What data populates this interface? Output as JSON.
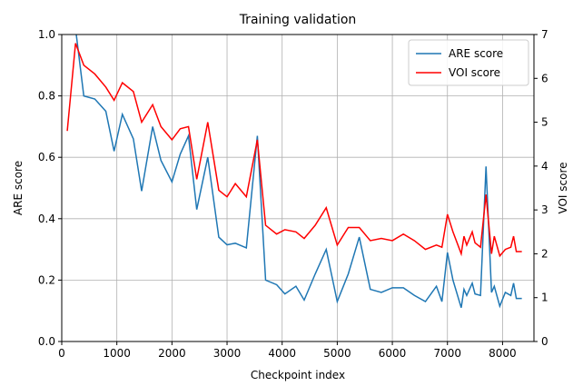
{
  "chart_data": {
    "type": "line",
    "title": "Training validation",
    "x_label": "Checkpoint index",
    "y_label": "ARE score",
    "y2_label": "VOI score",
    "x": [
      100,
      250,
      400,
      600,
      800,
      950,
      1100,
      1300,
      1450,
      1650,
      1800,
      2000,
      2150,
      2300,
      2450,
      2650,
      2850,
      3000,
      3150,
      3350,
      3550,
      3700,
      3900,
      4050,
      4250,
      4400,
      4600,
      4800,
      5000,
      5200,
      5400,
      5600,
      5800,
      6000,
      6200,
      6400,
      6600,
      6800,
      6900,
      7000,
      7100,
      7250,
      7300,
      7350,
      7450,
      7500,
      7600,
      7700,
      7800,
      7850,
      7950,
      8050,
      8150,
      8200,
      8250,
      8350
    ],
    "series": [
      {
        "name": "ARE score",
        "color": "#1f77b4",
        "values": [
          null,
          1.02,
          0.8,
          0.79,
          0.75,
          0.62,
          0.74,
          0.66,
          0.49,
          0.7,
          0.59,
          0.52,
          0.61,
          0.67,
          0.43,
          0.6,
          0.34,
          0.315,
          0.32,
          0.305,
          0.67,
          0.2,
          0.185,
          0.155,
          0.18,
          0.135,
          0.22,
          0.3,
          0.13,
          0.22,
          0.34,
          0.17,
          0.16,
          0.175,
          0.175,
          0.15,
          0.13,
          0.18,
          0.13,
          0.29,
          0.2,
          0.11,
          0.17,
          0.15,
          0.19,
          0.155,
          0.15,
          0.57,
          0.16,
          0.18,
          0.115,
          0.16,
          0.15,
          0.19,
          0.14,
          0.14
        ]
      },
      {
        "name": "VOI score",
        "color": "#ff0000",
        "axis": "y2",
        "values": [
          4.8,
          6.8,
          6.3,
          6.1,
          5.8,
          5.5,
          5.9,
          5.7,
          5.0,
          5.4,
          4.9,
          4.6,
          4.85,
          4.9,
          3.7,
          5.0,
          3.45,
          3.3,
          3.6,
          3.3,
          4.6,
          2.65,
          2.45,
          2.55,
          2.5,
          2.35,
          2.65,
          3.05,
          2.2,
          2.6,
          2.6,
          2.3,
          2.35,
          2.3,
          2.45,
          2.3,
          2.1,
          2.2,
          2.15,
          2.9,
          2.5,
          2.0,
          2.4,
          2.2,
          2.5,
          2.25,
          2.15,
          3.35,
          2.0,
          2.4,
          1.95,
          2.1,
          2.15,
          2.4,
          2.05,
          2.05
        ]
      }
    ],
    "xlim": [
      0,
      8570
    ],
    "xticks": [
      0,
      1000,
      2000,
      3000,
      4000,
      5000,
      6000,
      7000,
      8000
    ],
    "ylim": [
      0,
      1
    ],
    "yticks": [
      {
        "value": 0,
        "label": "0.0"
      },
      0.2,
      0.4,
      0.6,
      0.8,
      {
        "value": 1,
        "label": "1.0"
      }
    ],
    "y2lim": [
      0,
      7
    ],
    "y2ticks": [
      0,
      1,
      2,
      3,
      4,
      5,
      6,
      7
    ],
    "grid": true,
    "legend": "upper right"
  }
}
